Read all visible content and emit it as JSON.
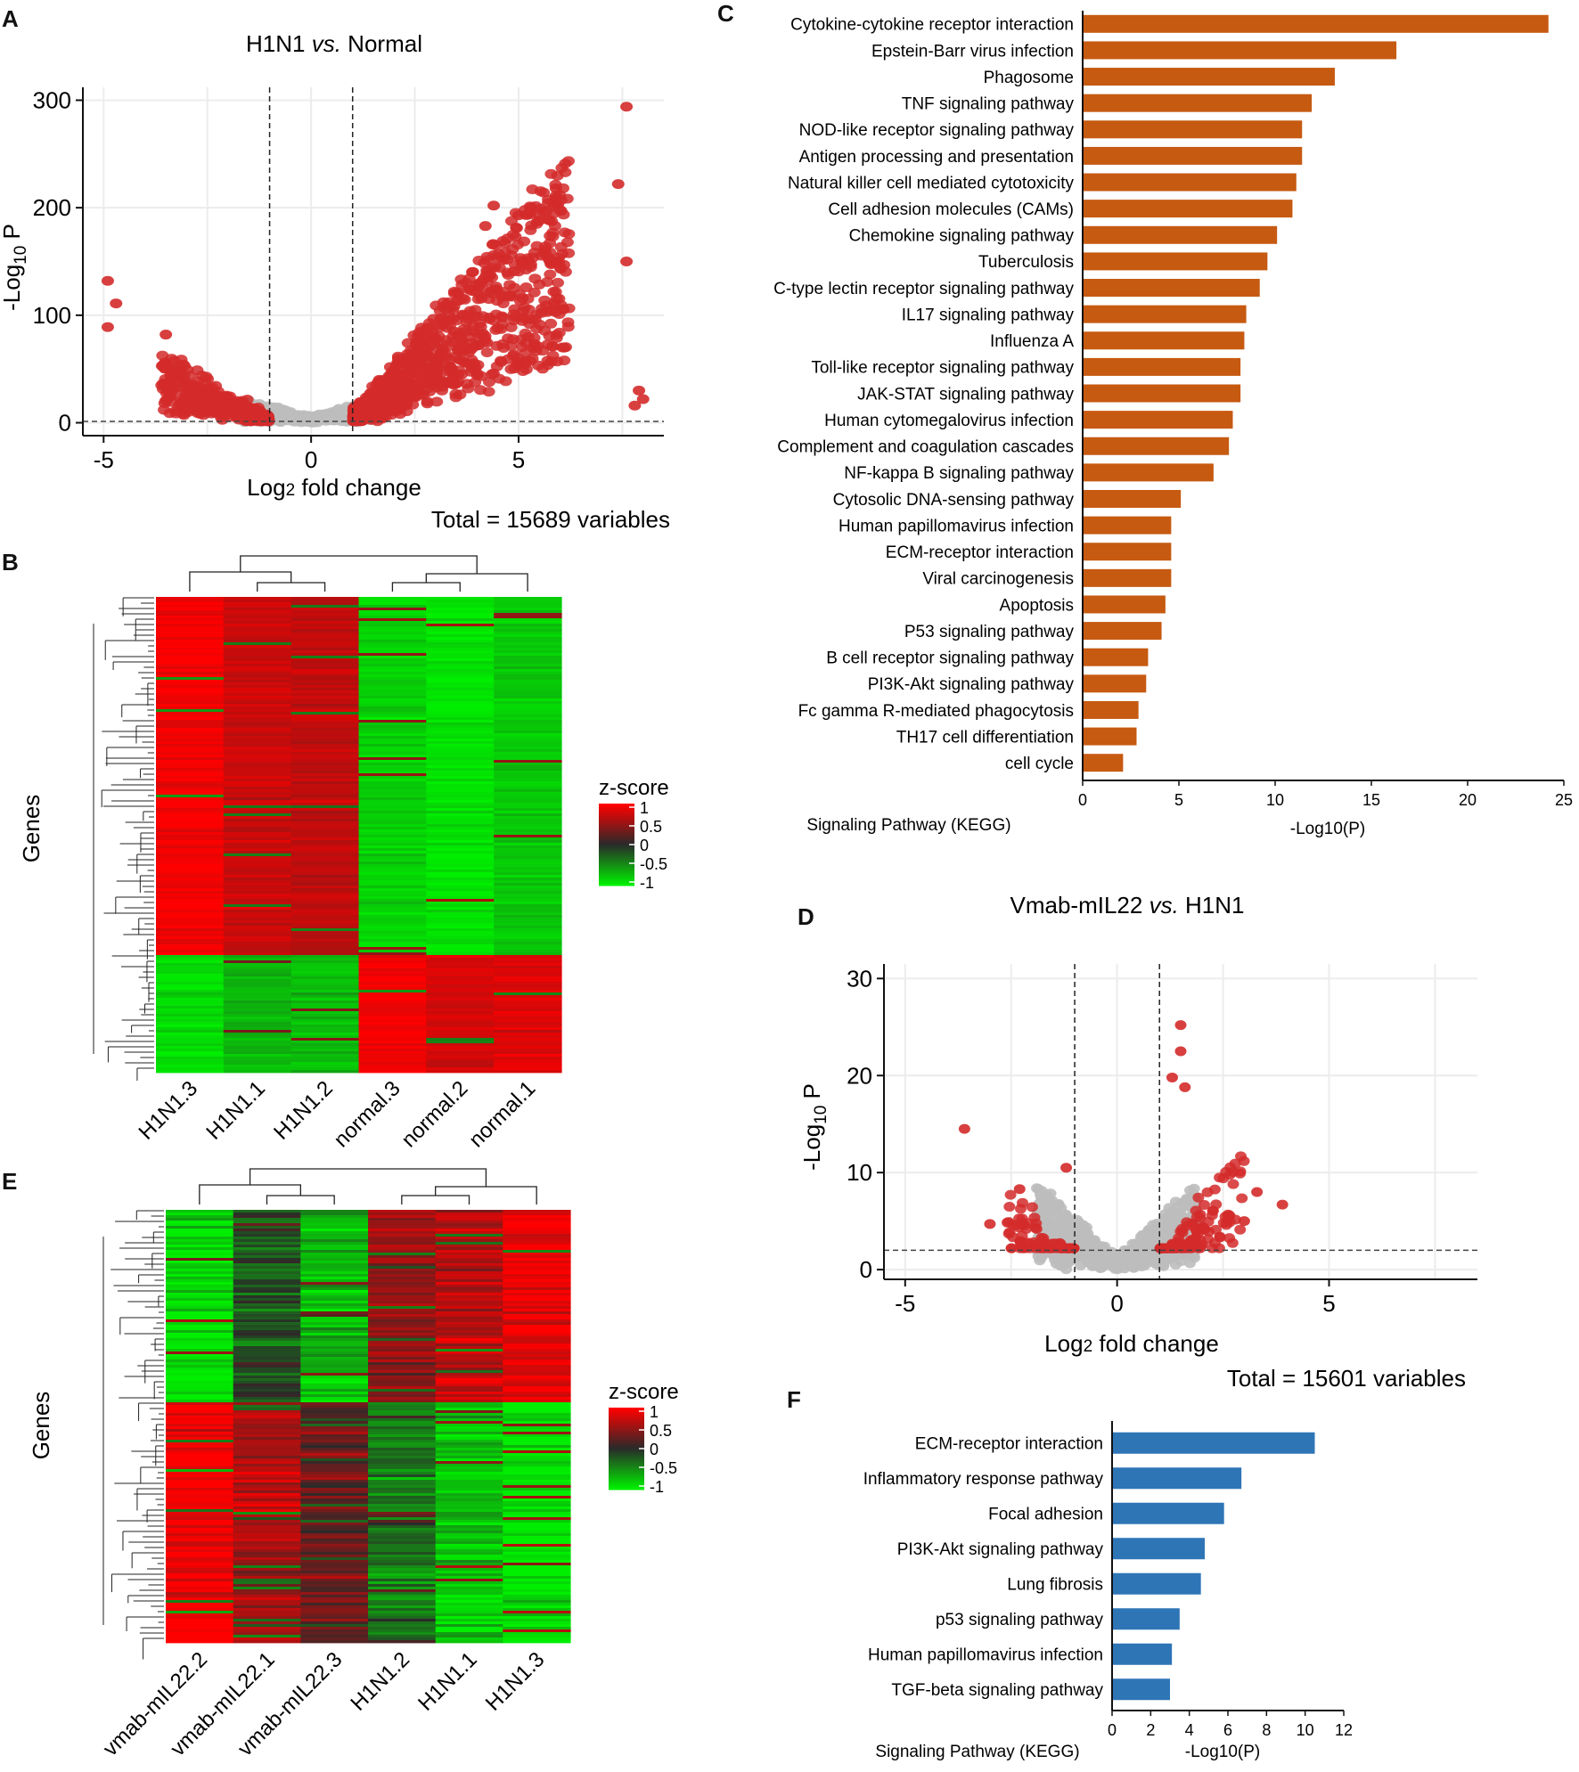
{
  "panels": {
    "A": "A",
    "B": "B",
    "C": "C",
    "D": "D",
    "E": "E",
    "F": "F"
  },
  "panel_a": {
    "title_prefix": "H1N1 ",
    "title_vs": "vs.",
    "title_suffix": " Normal",
    "total": "Total = 15689 variables"
  },
  "panel_d": {
    "title_prefix": "Vmab-mIL22 ",
    "title_vs": "vs.",
    "title_suffix": " H1N1",
    "total": "Total = 15601 variables"
  },
  "heatmap_b": {
    "ylabel": "Genes",
    "legend_title": "z-score",
    "legend_ticks": [
      "1",
      "0.5",
      "0",
      "-0.5",
      "-1"
    ],
    "columns": [
      "H1N1.3",
      "H1N1.1",
      "H1N1.2",
      "normal.3",
      "normal.2",
      "normal.1"
    ]
  },
  "heatmap_e": {
    "ylabel": "Genes",
    "legend_title": "z-score",
    "legend_ticks": [
      "1",
      "0.5",
      "0",
      "-0.5",
      "-1"
    ],
    "columns": [
      "vmab-mIL22.2",
      "vmab-mIL22.1",
      "vmab-mIL22.3",
      "H1N1.2",
      "H1N1.1",
      "H1N1.3"
    ]
  },
  "colors": {
    "orange_bar": "#c65a11",
    "blue_bar": "#2e75b6",
    "sig_point": "#d42a2a",
    "ns_point": "#bdbdbd",
    "heat_high": "#ff0000",
    "heat_mid": "#2a2a2a",
    "heat_low": "#00ee00"
  },
  "chart_data": [
    {
      "id": "A",
      "type": "scatter",
      "title": "H1N1 vs. Normal",
      "xlabel": "Log2 fold change",
      "ylabel": "-Log10 P",
      "xlim": [
        -5.5,
        8.5
      ],
      "ylim": [
        -12,
        312
      ],
      "xticks": [
        -5,
        0,
        5
      ],
      "yticks": [
        0,
        100,
        200,
        300
      ],
      "fc_cutoff": [
        -1,
        1
      ],
      "p_cutoff": 1.3,
      "outliers": [
        [
          7.6,
          294
        ],
        [
          7.4,
          222
        ],
        [
          5.9,
          218
        ],
        [
          4.4,
          202
        ],
        [
          5.0,
          193
        ],
        [
          4.2,
          183
        ],
        [
          7.6,
          150
        ],
        [
          -4.9,
          132
        ],
        [
          -4.7,
          111
        ],
        [
          -4.9,
          89
        ],
        [
          -3.5,
          82
        ],
        [
          7.9,
          30
        ],
        [
          8.0,
          22
        ],
        [
          7.8,
          16
        ]
      ]
    },
    {
      "id": "C",
      "type": "bar",
      "orientation": "horizontal",
      "xlabel": "-Log10(P)",
      "ylabel": "Signaling Pathway (KEGG)",
      "xlim": [
        0,
        25
      ],
      "xticks": [
        0,
        5,
        10,
        15,
        20,
        25
      ],
      "categories": [
        "Cytokine-cytokine receptor interaction",
        "Epstein-Barr virus infection",
        "Phagosome",
        "TNF signaling pathway",
        "NOD-like receptor signaling pathway",
        "Antigen processing and presentation",
        "Natural killer cell mediated cytotoxicity",
        "Cell adhesion molecules (CAMs)",
        "Chemokine signaling pathway",
        "Tuberculosis",
        "C-type lectin receptor signaling pathway",
        "IL17 signaling pathway",
        "Influenza A",
        "Toll-like receptor signaling pathway",
        "JAK-STAT signaling pathway",
        "Human cytomegalovirus infection",
        "Complement and coagulation cascades",
        "NF-kappa B signaling pathway",
        "Cytosolic DNA-sensing pathway",
        "Human papillomavirus infection",
        "ECM-receptor interaction",
        "Viral carcinogenesis",
        "Apoptosis",
        "P53 signaling pathway",
        "B cell receptor signaling pathway",
        "PI3K-Akt signaling pathway",
        "Fc gamma R-mediated phagocytosis",
        "TH17 cell differentiation",
        "cell cycle"
      ],
      "values": [
        24.2,
        16.3,
        13.1,
        11.9,
        11.4,
        11.4,
        11.1,
        10.9,
        10.1,
        9.6,
        9.2,
        8.5,
        8.4,
        8.2,
        8.2,
        7.8,
        7.6,
        6.8,
        5.1,
        4.6,
        4.6,
        4.6,
        4.3,
        4.1,
        3.4,
        3.3,
        2.9,
        2.8,
        2.1
      ]
    },
    {
      "id": "D",
      "type": "scatter",
      "title": "Vmab-mIL22 vs. H1N1",
      "xlabel": "Log2 fold change",
      "ylabel": "-Log10 P",
      "xlim": [
        -5.5,
        8.5
      ],
      "ylim": [
        -1,
        31.5
      ],
      "xticks": [
        -5,
        0,
        5
      ],
      "yticks": [
        0,
        10,
        20,
        30
      ],
      "fc_cutoff": [
        -1,
        1
      ],
      "p_cutoff": 2.0,
      "outliers": [
        [
          -3.6,
          14.5
        ],
        [
          1.5,
          25.2
        ],
        [
          1.5,
          22.5
        ],
        [
          1.3,
          19.8
        ],
        [
          1.6,
          18.8
        ],
        [
          3.3,
          8.0
        ],
        [
          3.9,
          6.7
        ],
        [
          3.0,
          5.0
        ],
        [
          -3.0,
          4.7
        ],
        [
          -1.2,
          10.5
        ],
        [
          -2.3,
          8.3
        ]
      ]
    },
    {
      "id": "F",
      "type": "bar",
      "orientation": "horizontal",
      "xlabel": "-Log10(P)",
      "ylabel": "Signaling Pathway (KEGG)",
      "xlim": [
        0,
        12
      ],
      "xticks": [
        0,
        2,
        4,
        6,
        8,
        10,
        12
      ],
      "categories": [
        "ECM-receptor interaction",
        "Inflammatory response pathway",
        "Focal adhesion",
        "PI3K-Akt signaling pathway",
        "Lung fibrosis",
        "p53 signaling pathway",
        "Human papillomavirus infection",
        "TGF-beta signaling pathway"
      ],
      "values": [
        10.5,
        6.7,
        5.8,
        4.8,
        4.6,
        3.5,
        3.1,
        3.0
      ]
    }
  ]
}
